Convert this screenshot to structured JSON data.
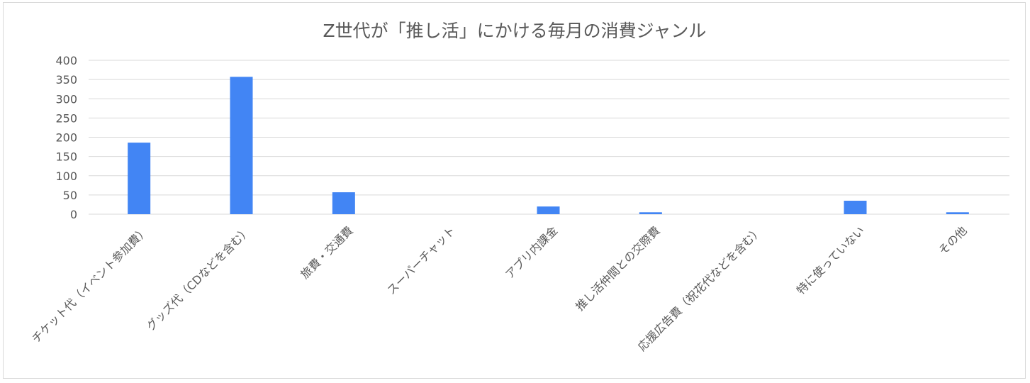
{
  "colors": {
    "bar": "#4285f4",
    "grid": "#d9d9d9",
    "text": "#595959",
    "border": "#d9d9d9"
  },
  "chart_data": {
    "type": "bar",
    "title": "Z世代が「推し活」にかける毎月の消費ジャンル",
    "xlabel": "",
    "ylabel": "",
    "ylim": [
      0,
      400
    ],
    "yticks": [
      0,
      50,
      100,
      150,
      200,
      250,
      300,
      350,
      400
    ],
    "grid": true,
    "legend": "none",
    "categories": [
      "チケット代（イベント参加費）",
      "グッズ代（CDなどを含む）",
      "旅費・交通費",
      "スーパーチャット",
      "アプリ内課金",
      "推し活仲間との交際費",
      "応援広告費（祝花代などを含む）",
      "特に使っていない",
      "その他"
    ],
    "series": [
      {
        "values": [
          186,
          357,
          57,
          0,
          20,
          5,
          0,
          35,
          5
        ]
      }
    ]
  }
}
